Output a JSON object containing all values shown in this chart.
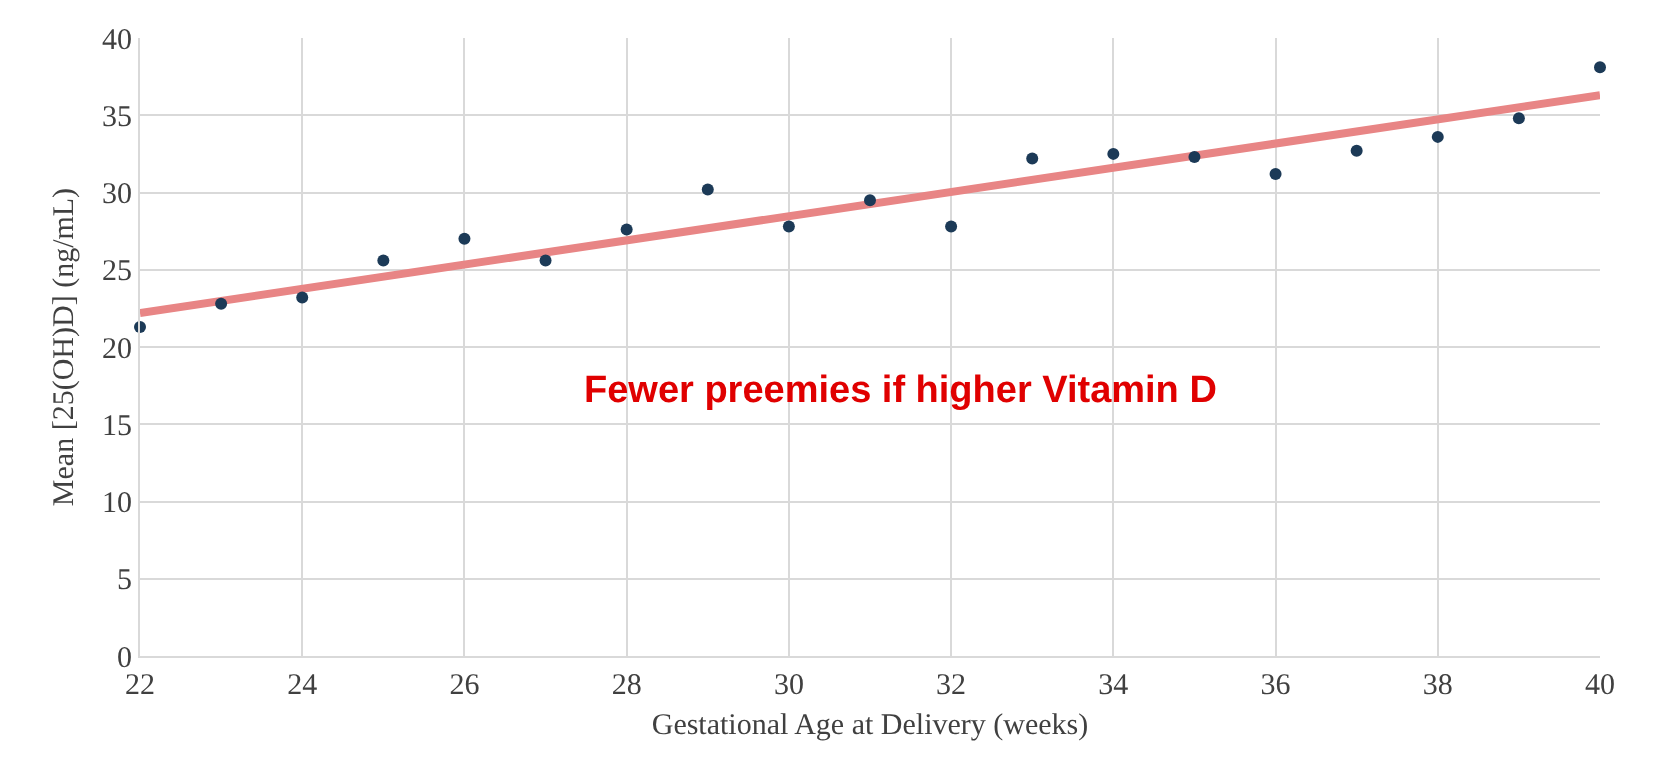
{
  "chart_data": {
    "type": "scatter",
    "xlabel": "Gestational Age at Delivery (weeks)",
    "ylabel": "Mean [25(OH)D] (ng/mL)",
    "annotations": [
      "Fewer preemies if higher Vitamin D"
    ],
    "series": [
      {
        "type": "line",
        "color": "#e88585",
        "marker": "none",
        "line_style": "solid",
        "x": [
          22,
          40
        ],
        "values": [
          22.2,
          36.3
        ]
      },
      {
        "color": "#1c3a57",
        "marker": "circle",
        "x": [
          22,
          23,
          24,
          25,
          26,
          27,
          28,
          29,
          30,
          31,
          32,
          33,
          34,
          35,
          36,
          37,
          38,
          39,
          40
        ],
        "values": [
          21.3,
          22.8,
          23.2,
          25.6,
          27.0,
          25.6,
          27.6,
          30.2,
          27.8,
          29.5,
          27.8,
          32.2,
          32.5,
          32.3,
          31.2,
          32.7,
          33.6,
          34.8,
          38.1
        ]
      }
    ],
    "xlim": [
      22,
      40
    ],
    "xticks": [
      22,
      24,
      26,
      28,
      30,
      32,
      34,
      36,
      38,
      40
    ],
    "ylim": [
      0,
      40
    ],
    "yticks": [
      0,
      5,
      10,
      15,
      20,
      25,
      30,
      35,
      40
    ],
    "grid": true,
    "legend": false
  }
}
